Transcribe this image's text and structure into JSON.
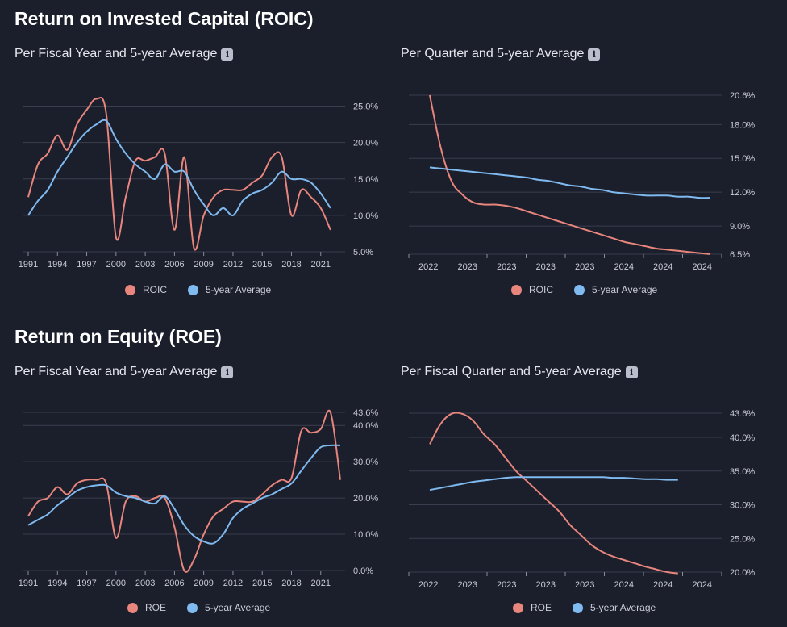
{
  "sections": [
    {
      "title": "Return on Invested Capital (ROIC)"
    },
    {
      "title": "Return on Equity (ROE)"
    }
  ],
  "colors": {
    "primary": "#e8857d",
    "average": "#7fbaf0",
    "grid": "#3a3e4e"
  },
  "chart_data": [
    {
      "id": "roic-year",
      "type": "line",
      "title": "Per Fiscal Year and 5-year Average",
      "x": [
        1991,
        1992,
        1993,
        1994,
        1995,
        1996,
        1997,
        1998,
        1999,
        2000,
        2001,
        2002,
        2003,
        2004,
        2005,
        2006,
        2007,
        2008,
        2009,
        2010,
        2011,
        2012,
        2013,
        2014,
        2015,
        2016,
        2017,
        2018,
        2019,
        2020,
        2021,
        2022,
        2023
      ],
      "xlim": [
        1991,
        2023.5
      ],
      "x_ticks": [
        1991,
        1994,
        1997,
        2000,
        2003,
        2006,
        2009,
        2012,
        2015,
        2018,
        2021
      ],
      "ylim": [
        5,
        26.5
      ],
      "y_ticks": [
        5,
        10,
        15,
        20,
        25
      ],
      "y_tick_labels": [
        "5.0%",
        "10.0%",
        "15.0%",
        "20.0%",
        "25.0%"
      ],
      "series": [
        {
          "name": "ROIC",
          "values": [
            12.5,
            17.0,
            18.5,
            21.0,
            19.0,
            22.5,
            24.5,
            26.0,
            24.0,
            7.0,
            12.5,
            17.5,
            17.5,
            18.0,
            18.5,
            8.0,
            18.0,
            5.5,
            10.0,
            12.5,
            13.5,
            13.5,
            13.5,
            14.5,
            15.5,
            18.0,
            18.0,
            10.0,
            13.5,
            12.5,
            11.0,
            8.0,
            null
          ]
        },
        {
          "name": "5-year Average",
          "values": [
            10.0,
            12.0,
            13.5,
            16.0,
            18.0,
            20.0,
            21.5,
            22.5,
            23.0,
            20.5,
            18.5,
            17.0,
            16.0,
            15.0,
            17.0,
            16.0,
            16.0,
            13.5,
            11.5,
            10.0,
            11.0,
            10.0,
            12.0,
            13.0,
            13.5,
            14.5,
            16.0,
            15.0,
            15.0,
            14.5,
            13.0,
            11.0,
            null
          ]
        }
      ]
    },
    {
      "id": "roic-quarter",
      "type": "line",
      "title": "Per Quarter and 5-year Average",
      "x": [
        0,
        1,
        2,
        3,
        4,
        5,
        6,
        7,
        8,
        9,
        10,
        11,
        12,
        13,
        14,
        15,
        16,
        17,
        18,
        19,
        20,
        21,
        22,
        23,
        24,
        25,
        26
      ],
      "x_tick_labels": [
        "2022",
        "2023",
        "2023",
        "2023",
        "2023",
        "2024",
        "2024",
        "2024"
      ],
      "ylim": [
        6.5,
        20.6
      ],
      "y_ticks": [
        6.5,
        9.0,
        12.0,
        15.0,
        18.0,
        20.6
      ],
      "y_tick_labels": [
        "6.5%",
        "9.0%",
        "12.0%",
        "15.0%",
        "18.0%",
        "20.6%"
      ],
      "series": [
        {
          "name": "ROIC",
          "values": [
            20.6,
            16.0,
            13.0,
            11.8,
            11.1,
            10.9,
            10.9,
            10.8,
            10.6,
            10.3,
            10.0,
            9.7,
            9.4,
            9.1,
            8.8,
            8.5,
            8.2,
            7.9,
            7.6,
            7.4,
            7.2,
            7.0,
            6.9,
            6.8,
            6.7,
            6.6,
            6.5
          ]
        },
        {
          "name": "5-year Average",
          "values": [
            14.2,
            14.1,
            14.0,
            13.9,
            13.8,
            13.7,
            13.6,
            13.5,
            13.4,
            13.3,
            13.1,
            13.0,
            12.8,
            12.6,
            12.5,
            12.3,
            12.2,
            12.0,
            11.9,
            11.8,
            11.7,
            11.7,
            11.7,
            11.6,
            11.6,
            11.5,
            11.5
          ]
        }
      ]
    },
    {
      "id": "roe-year",
      "type": "line",
      "title": "Per Fiscal Year and 5-year Average",
      "x": [
        1991,
        1992,
        1993,
        1994,
        1995,
        1996,
        1997,
        1998,
        1999,
        2000,
        2001,
        2002,
        2003,
        2004,
        2005,
        2006,
        2007,
        2008,
        2009,
        2010,
        2011,
        2012,
        2013,
        2014,
        2015,
        2016,
        2017,
        2018,
        2019,
        2020,
        2021,
        2022,
        2023
      ],
      "xlim": [
        1991,
        2023.5
      ],
      "x_ticks": [
        1991,
        1994,
        1997,
        2000,
        2003,
        2006,
        2009,
        2012,
        2015,
        2018,
        2021
      ],
      "ylim": [
        0,
        44.5
      ],
      "y_ticks": [
        0,
        10,
        20,
        30,
        40,
        43.6
      ],
      "y_tick_labels": [
        "0.0%",
        "10.0%",
        "20.0%",
        "30.0%",
        "40.0%",
        "43.6%"
      ],
      "series": [
        {
          "name": "ROE",
          "values": [
            15.0,
            19.0,
            20.0,
            23.0,
            21.0,
            24.0,
            25.0,
            25.0,
            24.0,
            9.0,
            19.0,
            20.5,
            19.0,
            20.0,
            20.0,
            12.0,
            0.0,
            3.0,
            10.0,
            15.0,
            17.0,
            19.0,
            19.0,
            19.0,
            21.0,
            23.5,
            25.0,
            25.5,
            38.5,
            38.0,
            39.0,
            43.6,
            25.0
          ]
        },
        {
          "name": "5-year Average",
          "values": [
            12.5,
            14.0,
            15.5,
            18.0,
            20.0,
            22.0,
            23.0,
            23.5,
            23.5,
            21.5,
            20.5,
            20.0,
            19.0,
            18.5,
            20.5,
            17.0,
            12.5,
            9.5,
            8.0,
            7.5,
            10.0,
            14.5,
            17.0,
            18.5,
            20.0,
            21.0,
            22.5,
            24.0,
            27.5,
            31.0,
            34.0,
            34.5,
            34.5
          ]
        }
      ]
    },
    {
      "id": "roe-quarter",
      "type": "line",
      "title": "Per Fiscal Quarter and 5-year Average",
      "x": [
        0,
        1,
        2,
        3,
        4,
        5,
        6,
        7,
        8,
        9,
        10,
        11,
        12,
        13,
        14,
        15,
        16,
        17,
        18,
        19,
        20,
        21,
        22,
        23,
        24,
        25,
        26
      ],
      "x_tick_labels": [
        "2022",
        "2023",
        "2023",
        "2023",
        "2023",
        "2024",
        "2024",
        "2024"
      ],
      "ylim": [
        20,
        43.6
      ],
      "y_ticks": [
        20,
        25,
        30,
        35,
        40,
        43.6
      ],
      "y_tick_labels": [
        "20.0%",
        "25.0%",
        "30.0%",
        "35.0%",
        "40.0%",
        "43.6%"
      ],
      "series": [
        {
          "name": "ROE",
          "values": [
            39.0,
            42.0,
            43.5,
            43.5,
            42.5,
            40.5,
            39.0,
            37.0,
            35.0,
            33.5,
            32.0,
            30.5,
            29.0,
            27.0,
            25.5,
            24.0,
            23.0,
            22.3,
            21.8,
            21.3,
            20.8,
            20.4,
            20.0,
            19.8,
            null,
            null,
            null
          ]
        },
        {
          "name": "5-year Average",
          "values": [
            32.2,
            32.5,
            32.8,
            33.1,
            33.4,
            33.6,
            33.8,
            34.0,
            34.1,
            34.1,
            34.1,
            34.1,
            34.1,
            34.1,
            34.1,
            34.1,
            34.1,
            34.0,
            34.0,
            33.9,
            33.8,
            33.8,
            33.7,
            33.7,
            null,
            null,
            null
          ]
        }
      ]
    }
  ]
}
